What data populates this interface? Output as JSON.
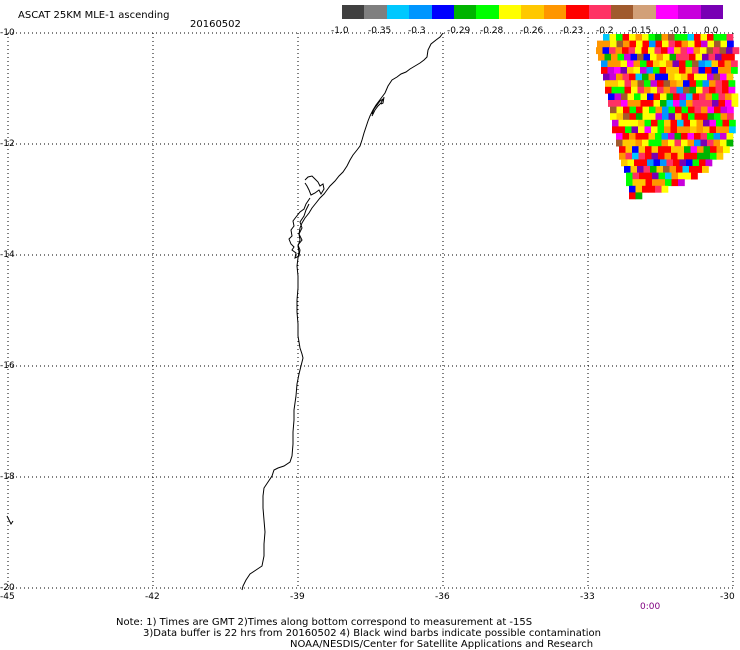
{
  "header": {
    "title": "ASCAT 25KM MLE-1 ascending",
    "date": "20160502"
  },
  "colorbar": {
    "colors": [
      "#404040",
      "#7f7f7f",
      "#00c8ff",
      "#0096ff",
      "#0000ff",
      "#00b400",
      "#00ff00",
      "#ffff00",
      "#ffc800",
      "#ff9600",
      "#ff0000",
      "#ff3264",
      "#a05a2d",
      "#d2a078",
      "#ff00ff",
      "#c800dc",
      "#7800b4"
    ],
    "labels": [
      "-1.0",
      "-0.35",
      "-0.3",
      "-0.29",
      "-0.28",
      "-0.26",
      "-0.23",
      "-0.2",
      "-0.15",
      "-0.1",
      "0.0"
    ]
  },
  "map": {
    "lon_range": [
      -45,
      -30
    ],
    "lat_range": [
      -20,
      -10
    ],
    "x_ticks": [
      "-45",
      "-42",
      "-39",
      "-36",
      "-33",
      "-30"
    ],
    "y_ticks": [
      "-10",
      "-12",
      "-14",
      "-16",
      "-18",
      "-20"
    ],
    "time_label": "0:00",
    "time_color": "#800080"
  },
  "footer": {
    "line1": "Note: 1) Times are GMT 2)Times along bottom correspond to measurement at -15S",
    "line2": "3)Data buffer is 22 hrs from 20160502 4) Black wind barbs indicate possible contamination",
    "line3": "NOAA/NESDIS/Center for Satellite Applications and Research"
  }
}
